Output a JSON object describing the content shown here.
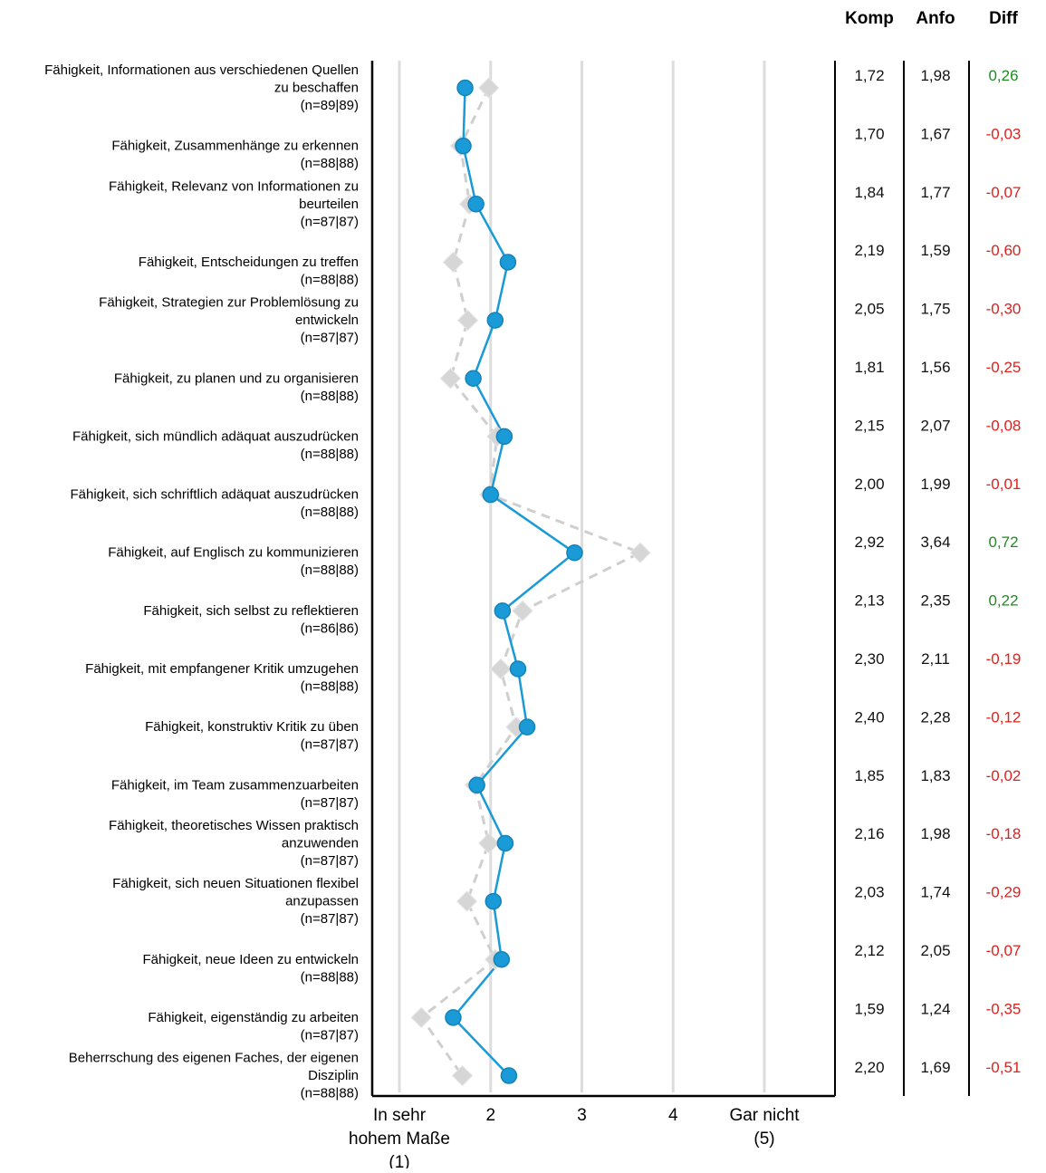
{
  "chart_data": {
    "type": "line",
    "xlim": [
      1,
      5
    ],
    "x_ticks": [
      {
        "value": 1,
        "lines": [
          "In sehr",
          "hohem Maße",
          "(1)"
        ]
      },
      {
        "value": 2,
        "lines": [
          "2"
        ]
      },
      {
        "value": 3,
        "lines": [
          "3"
        ]
      },
      {
        "value": 4,
        "lines": [
          "4"
        ]
      },
      {
        "value": 5,
        "lines": [
          "Gar nicht",
          "(5)"
        ]
      }
    ],
    "grid": true,
    "table_headers": {
      "komp": "Komp",
      "anfo": "Anfo",
      "diff": "Diff"
    },
    "series": [
      {
        "key": "komp",
        "style": "solid",
        "marker": "circle",
        "color": "#1a9ad6"
      },
      {
        "key": "anfo",
        "style": "dashed",
        "marker": "diamond",
        "color": "#cfcfcf"
      }
    ],
    "colors": {
      "positive_diff": "#1e8c1e",
      "negative_diff": "#e0201c",
      "grid": "#dddddd"
    },
    "rows": [
      {
        "label": [
          "Fähigkeit, Informationen aus verschiedenen Quellen",
          "zu beschaffen",
          "(n=89|89)"
        ],
        "komp": 1.72,
        "anfo": 1.98,
        "komp_text": "1,72",
        "anfo_text": "1,98",
        "diff_text": "0,26",
        "diff_positive": true
      },
      {
        "label": [
          "Fähigkeit, Zusammenhänge zu erkennen",
          "(n=88|88)"
        ],
        "komp": 1.7,
        "anfo": 1.67,
        "komp_text": "1,70",
        "anfo_text": "1,67",
        "diff_text": "-0,03",
        "diff_positive": false
      },
      {
        "label": [
          "Fähigkeit, Relevanz von Informationen zu",
          "beurteilen",
          "(n=87|87)"
        ],
        "komp": 1.84,
        "anfo": 1.77,
        "komp_text": "1,84",
        "anfo_text": "1,77",
        "diff_text": "-0,07",
        "diff_positive": false
      },
      {
        "label": [
          "Fähigkeit, Entscheidungen zu treffen",
          "(n=88|88)"
        ],
        "komp": 2.19,
        "anfo": 1.59,
        "komp_text": "2,19",
        "anfo_text": "1,59",
        "diff_text": "-0,60",
        "diff_positive": false
      },
      {
        "label": [
          "Fähigkeit, Strategien zur Problemlösung zu",
          "entwickeln",
          "(n=87|87)"
        ],
        "komp": 2.05,
        "anfo": 1.75,
        "komp_text": "2,05",
        "anfo_text": "1,75",
        "diff_text": "-0,30",
        "diff_positive": false
      },
      {
        "label": [
          "Fähigkeit, zu planen und zu organisieren",
          "(n=88|88)"
        ],
        "komp": 1.81,
        "anfo": 1.56,
        "komp_text": "1,81",
        "anfo_text": "1,56",
        "diff_text": "-0,25",
        "diff_positive": false
      },
      {
        "label": [
          "Fähigkeit, sich mündlich adäquat auszudrücken",
          "(n=88|88)"
        ],
        "komp": 2.15,
        "anfo": 2.07,
        "komp_text": "2,15",
        "anfo_text": "2,07",
        "diff_text": "-0,08",
        "diff_positive": false
      },
      {
        "label": [
          "Fähigkeit, sich schriftlich adäquat auszudrücken",
          "(n=88|88)"
        ],
        "komp": 2.0,
        "anfo": 1.99,
        "komp_text": "2,00",
        "anfo_text": "1,99",
        "diff_text": "-0,01",
        "diff_positive": false
      },
      {
        "label": [
          "Fähigkeit, auf Englisch zu kommunizieren",
          "(n=88|88)"
        ],
        "komp": 2.92,
        "anfo": 3.64,
        "komp_text": "2,92",
        "anfo_text": "3,64",
        "diff_text": "0,72",
        "diff_positive": true
      },
      {
        "label": [
          "Fähigkeit, sich selbst zu reflektieren",
          "(n=86|86)"
        ],
        "komp": 2.13,
        "anfo": 2.35,
        "komp_text": "2,13",
        "anfo_text": "2,35",
        "diff_text": "0,22",
        "diff_positive": true
      },
      {
        "label": [
          "Fähigkeit, mit empfangener Kritik umzugehen",
          "(n=88|88)"
        ],
        "komp": 2.3,
        "anfo": 2.11,
        "komp_text": "2,30",
        "anfo_text": "2,11",
        "diff_text": "-0,19",
        "diff_positive": false
      },
      {
        "label": [
          "Fähigkeit, konstruktiv Kritik zu üben",
          "(n=87|87)"
        ],
        "komp": 2.4,
        "anfo": 2.28,
        "komp_text": "2,40",
        "anfo_text": "2,28",
        "diff_text": "-0,12",
        "diff_positive": false
      },
      {
        "label": [
          "Fähigkeit, im Team zusammenzuarbeiten",
          "(n=87|87)"
        ],
        "komp": 1.85,
        "anfo": 1.83,
        "komp_text": "1,85",
        "anfo_text": "1,83",
        "diff_text": "-0,02",
        "diff_positive": false
      },
      {
        "label": [
          "Fähigkeit, theoretisches Wissen praktisch",
          "anzuwenden",
          "(n=87|87)"
        ],
        "komp": 2.16,
        "anfo": 1.98,
        "komp_text": "2,16",
        "anfo_text": "1,98",
        "diff_text": "-0,18",
        "diff_positive": false
      },
      {
        "label": [
          "Fähigkeit, sich neuen Situationen flexibel",
          "anzupassen",
          "(n=87|87)"
        ],
        "komp": 2.03,
        "anfo": 1.74,
        "komp_text": "2,03",
        "anfo_text": "1,74",
        "diff_text": "-0,29",
        "diff_positive": false
      },
      {
        "label": [
          "Fähigkeit, neue Ideen zu entwickeln",
          "(n=88|88)"
        ],
        "komp": 2.12,
        "anfo": 2.05,
        "komp_text": "2,12",
        "anfo_text": "2,05",
        "diff_text": "-0,07",
        "diff_positive": false
      },
      {
        "label": [
          "Fähigkeit, eigenständig zu arbeiten",
          "(n=87|87)"
        ],
        "komp": 1.59,
        "anfo": 1.24,
        "komp_text": "1,59",
        "anfo_text": "1,24",
        "diff_text": "-0,35",
        "diff_positive": false
      },
      {
        "label": [
          "Beherrschung des eigenen Faches, der eigenen",
          "Disziplin",
          "(n=88|88)"
        ],
        "komp": 2.2,
        "anfo": 1.69,
        "komp_text": "2,20",
        "anfo_text": "1,69",
        "diff_text": "-0,51",
        "diff_positive": false
      }
    ]
  }
}
